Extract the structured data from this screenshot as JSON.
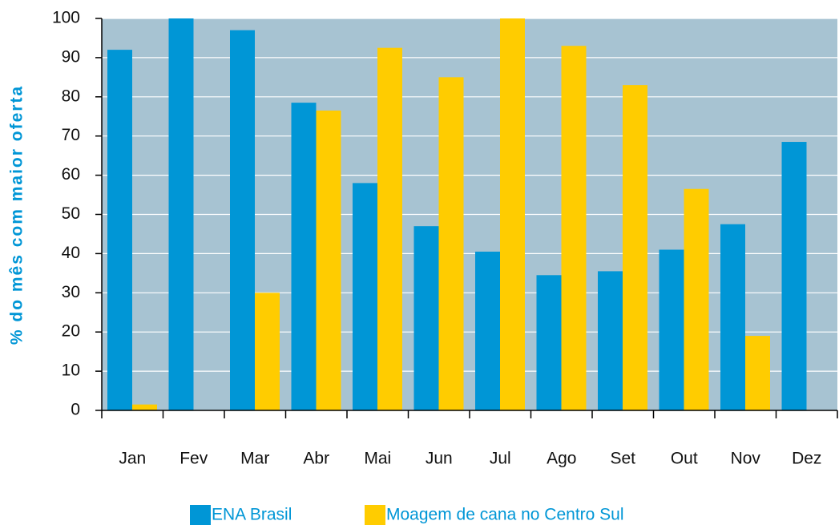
{
  "chart_data": {
    "type": "bar",
    "ylabel": "% do mês com maior oferta",
    "categories": [
      "Jan",
      "Fev",
      "Mar",
      "Abr",
      "Mai",
      "Jun",
      "Jul",
      "Ago",
      "Set",
      "Out",
      "Nov",
      "Dez"
    ],
    "series": [
      {
        "name": "ENA Brasil",
        "color": "#0096d6",
        "values": [
          92,
          100,
          97,
          78.5,
          58,
          47,
          40.5,
          34.5,
          35.5,
          41,
          47.5,
          68.5
        ]
      },
      {
        "name": "Moagem de cana no Centro Sul",
        "color": "#ffcc00",
        "values": [
          1.5,
          null,
          30,
          76.5,
          92.5,
          85,
          100,
          93,
          83,
          56.5,
          19,
          null
        ]
      }
    ],
    "ylim": [
      0,
      100
    ],
    "yticks": [
      0,
      10,
      20,
      30,
      40,
      50,
      60,
      70,
      80,
      90,
      100
    ],
    "grid": true,
    "background": "#a7c3d2",
    "legend": "bottom"
  }
}
